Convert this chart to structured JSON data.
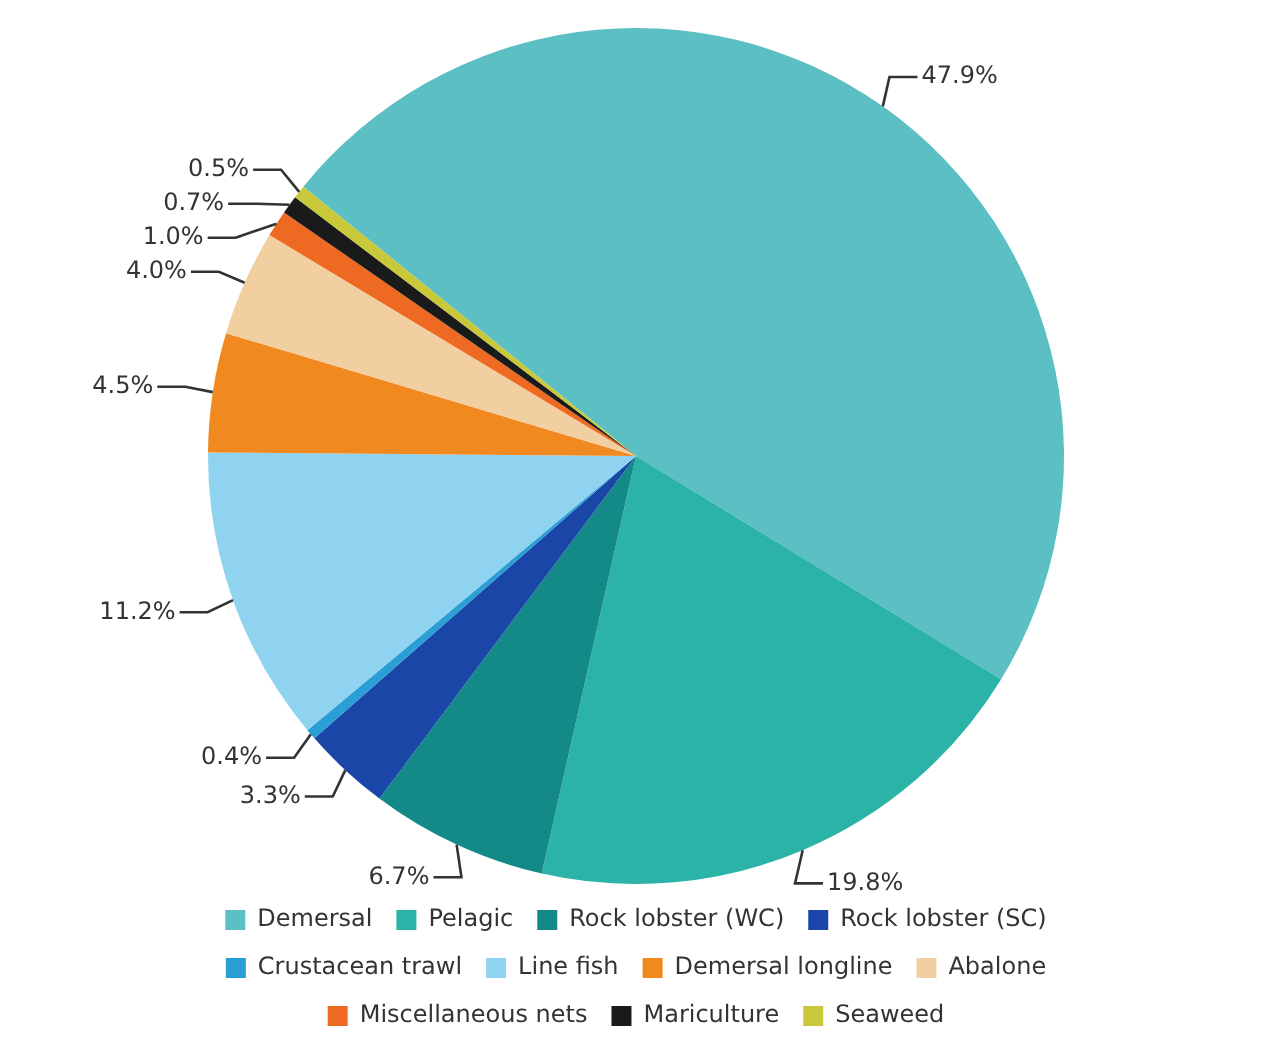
{
  "chart_data": {
    "type": "pie",
    "categories": [
      "Demersal",
      "Pelagic",
      "Rock lobster (WC)",
      "Rock lobster (SC)",
      "Crustacean trawl",
      "Line fish",
      "Demersal longline",
      "Abalone",
      "Miscellaneous nets",
      "Mariculture",
      "Seaweed"
    ],
    "values": [
      47.9,
      19.8,
      6.7,
      3.3,
      0.4,
      11.2,
      4.5,
      4.0,
      1.0,
      0.7,
      0.5
    ],
    "colors": [
      "#5bbfc4",
      "#2bb3a8",
      "#138a87",
      "#1a46a8",
      "#2a9fd6",
      "#8fd3f0",
      "#f08a20",
      "#f2cfa0",
      "#ee6a22",
      "#1a1a1a",
      "#c8c83a"
    ],
    "value_labels": [
      "47.9%",
      "19.8%",
      "6.7%",
      "3.3%",
      "0.4%",
      "11.2%",
      "4.5%",
      "4.0%",
      "1.0%",
      "0.7%",
      "0.5%"
    ],
    "legend": "bottom"
  }
}
